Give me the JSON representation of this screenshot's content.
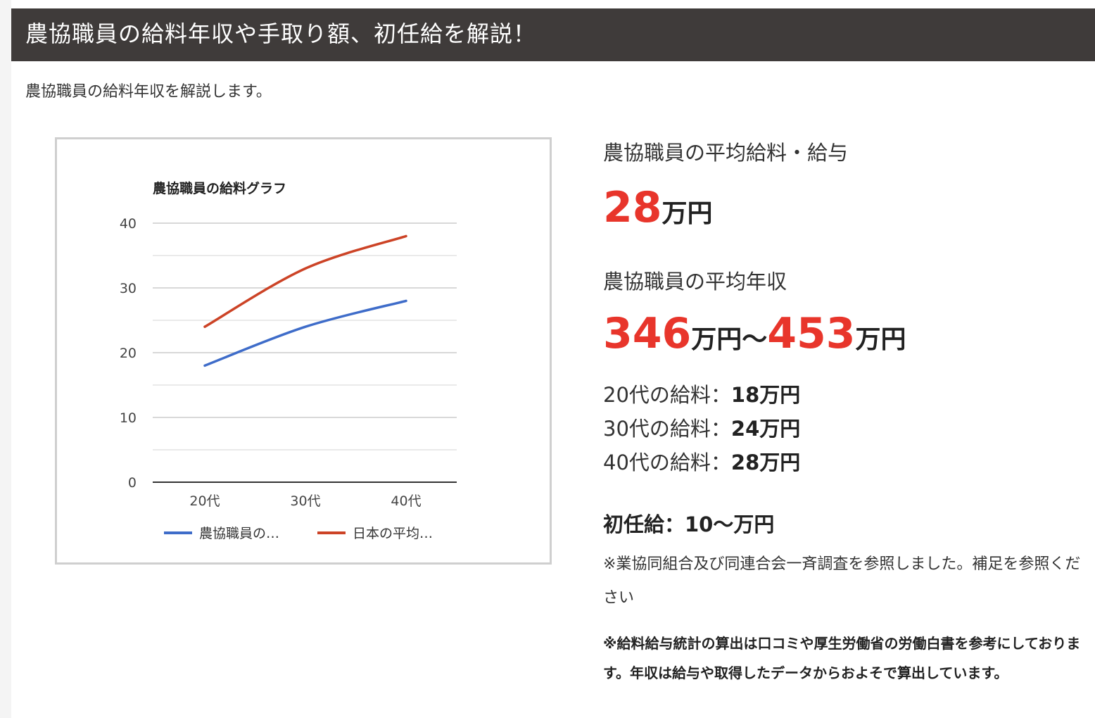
{
  "page": {
    "title": "農協職員の給料年収や手取り額、初任給を解説！",
    "intro": "農協職員の給料年収を解説します。"
  },
  "chart_data": {
    "type": "line",
    "title": "農協職員の給料グラフ",
    "categories": [
      "20代",
      "30代",
      "40代"
    ],
    "ylim": [
      0,
      40
    ],
    "yticks": [
      0,
      10,
      20,
      30,
      40
    ],
    "grid": true,
    "legend_position": "bottom",
    "series": [
      {
        "name": "農協職員の…",
        "color": "#3e6cc9",
        "values": [
          18,
          24,
          28
        ]
      },
      {
        "name": "日本の平均…",
        "color": "#cc4326",
        "values": [
          24,
          33,
          38
        ]
      }
    ]
  },
  "stats": {
    "avg_salary_heading": "農協職員の平均給料・給与",
    "avg_salary_value": "28",
    "avg_salary_unit": "万円",
    "avg_income_heading": "農協職員の平均年収",
    "income_min": "346",
    "income_unit_1": "万円〜",
    "income_max": "453",
    "income_unit_2": "万円",
    "age_rows": [
      {
        "label": "20代の給料：",
        "value": "18万円"
      },
      {
        "label": "30代の給料：",
        "value": "24万円"
      },
      {
        "label": "40代の給料：",
        "value": "28万円"
      }
    ],
    "starting_salary": "初任給：10〜万円",
    "note1": "※業協同組合及び同連合会一斉調査を参照しました。補足を参照ください",
    "note2": "※給料給与統計の算出は口コミや厚生労働省の労働白書を参考にしております。年収は給与や取得したデータからおよそで算出しています。"
  },
  "colors": {
    "title_bar_bg": "#3f3b3a",
    "accent_red": "#e8352b"
  }
}
